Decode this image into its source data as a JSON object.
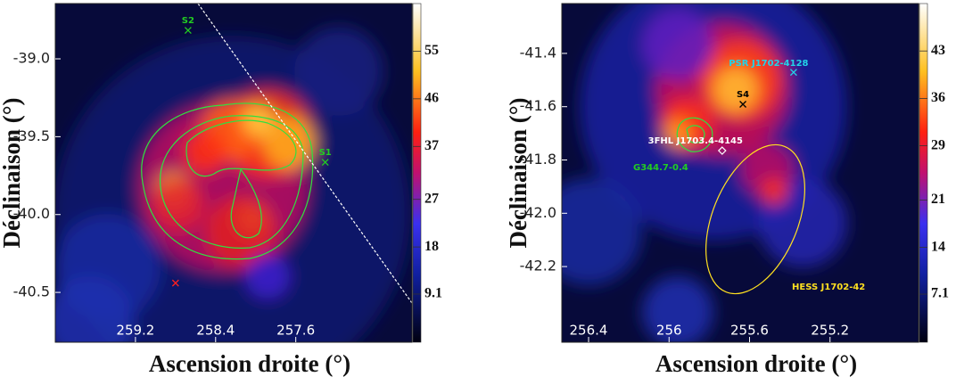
{
  "chart_data": [
    {
      "type": "image",
      "xlabel": "Ascension droite (°)",
      "ylabel": "Déclinaison (°)",
      "xlim": [
        260.0,
        256.44
      ],
      "ylim": [
        -40.82,
        -38.645
      ],
      "xticks": [
        259.2,
        258.4,
        257.6
      ],
      "yticks": [
        {
          "value": -39,
          "label": "-39.0"
        },
        -39.5,
        {
          "value": -40,
          "label": "-40.0"
        },
        -40.5
      ],
      "clim": [
        0,
        64
      ],
      "cticks": [
        9.1,
        18,
        27,
        37,
        46,
        55
      ],
      "points": [
        {
          "label": "S2",
          "x": 258.675,
          "y": -38.817,
          "color": "#22cc22",
          "marker": "x"
        },
        {
          "label": "S1",
          "x": 257.306,
          "y": -39.664,
          "color": "#22cc22",
          "marker": "x"
        },
        {
          "x": 258.8,
          "y": -40.44,
          "color": "#ff2020",
          "marker": "x"
        }
      ],
      "labels": []
    },
    {
      "type": "image",
      "xlabel": "Ascension droite (°)",
      "ylabel": "Déclinaison (°)",
      "xlim": [
        256.533,
        254.76
      ],
      "ylim": [
        -42.484,
        -41.213
      ],
      "xticks": [
        256.4,
        256.0,
        255.6,
        255.2
      ],
      "yticks": [
        -41.4,
        -41.6,
        -41.8,
        {
          "value": -42,
          "label": "-42.0"
        },
        -42.2
      ],
      "clim": [
        0,
        50
      ],
      "cticks": [
        7.1,
        14,
        21,
        29,
        36,
        43
      ],
      "points": [
        {
          "label": "PSR J1702-4128",
          "x": 255.381,
          "y": -41.471,
          "color": "#22d3e8",
          "marker": "x"
        },
        {
          "label": "S4",
          "x": 255.633,
          "y": -41.591,
          "color": "#000000",
          "marker": "x"
        },
        {
          "label": "3FHL J1703.4-4145",
          "x": 255.736,
          "y": -41.765,
          "color": "#ffffff",
          "marker": "diamond"
        }
      ],
      "labels": [
        {
          "text": "G344.7-0.4",
          "color": "#22cc22"
        },
        {
          "text": "HESS J1702-42",
          "color": "#ffe020"
        }
      ]
    }
  ]
}
